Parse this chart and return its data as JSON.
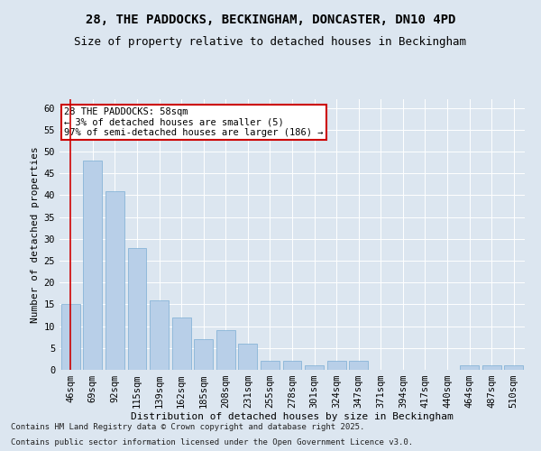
{
  "title1": "28, THE PADDOCKS, BECKINGHAM, DONCASTER, DN10 4PD",
  "title2": "Size of property relative to detached houses in Beckingham",
  "xlabel": "Distribution of detached houses by size in Beckingham",
  "ylabel": "Number of detached properties",
  "annotation_line1": "28 THE PADDOCKS: 58sqm",
  "annotation_line2": "← 3% of detached houses are smaller (5)",
  "annotation_line3": "97% of semi-detached houses are larger (186) →",
  "footer1": "Contains HM Land Registry data © Crown copyright and database right 2025.",
  "footer2": "Contains public sector information licensed under the Open Government Licence v3.0.",
  "categories": [
    "46sqm",
    "69sqm",
    "92sqm",
    "115sqm",
    "139sqm",
    "162sqm",
    "185sqm",
    "208sqm",
    "231sqm",
    "255sqm",
    "278sqm",
    "301sqm",
    "324sqm",
    "347sqm",
    "371sqm",
    "394sqm",
    "417sqm",
    "440sqm",
    "464sqm",
    "487sqm",
    "510sqm"
  ],
  "values": [
    15,
    48,
    41,
    28,
    16,
    12,
    7,
    9,
    6,
    2,
    2,
    1,
    2,
    2,
    0,
    0,
    0,
    0,
    1,
    1,
    1
  ],
  "bar_color": "#b8cfe8",
  "bar_edge_color": "#7aadd4",
  "ref_line_color": "#cc0000",
  "annotation_box_edge_color": "#cc0000",
  "background_color": "#dce6f0",
  "plot_background": "#dce6f0",
  "ylim": [
    0,
    62
  ],
  "yticks": [
    0,
    5,
    10,
    15,
    20,
    25,
    30,
    35,
    40,
    45,
    50,
    55,
    60
  ],
  "grid_color": "#ffffff",
  "title_fontsize": 10,
  "subtitle_fontsize": 9,
  "axis_label_fontsize": 8,
  "tick_fontsize": 7.5,
  "annotation_fontsize": 7.5,
  "footer_fontsize": 6.5
}
